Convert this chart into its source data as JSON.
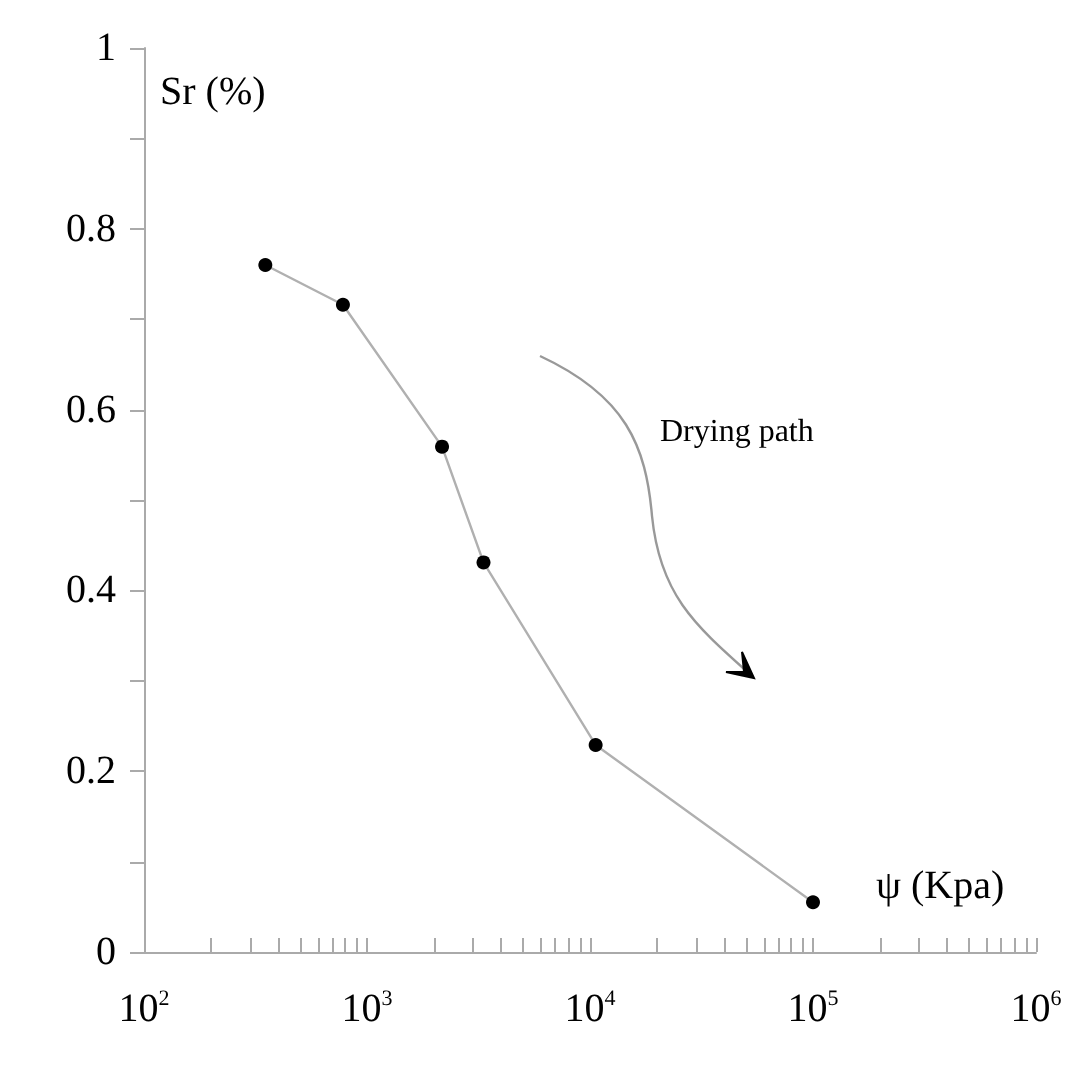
{
  "chart_data": {
    "type": "line",
    "xlabel": "ψ (Kpa)",
    "ylabel": "Sr (%)",
    "annotations": [
      "Drying path"
    ],
    "log": "x",
    "marker": "circle",
    "line_style": "solid",
    "grid": false,
    "xlim": [
      100,
      1000000
    ],
    "ylim": [
      0,
      1
    ],
    "xticks": [
      {
        "value": 100,
        "label": "10$^{2}$"
      },
      {
        "value": 200,
        "label": null
      },
      {
        "value": 300,
        "label": null
      },
      {
        "value": 400,
        "label": null
      },
      {
        "value": 500,
        "label": null
      },
      {
        "value": 600,
        "label": null
      },
      {
        "value": 700,
        "label": null
      },
      {
        "value": 800,
        "label": null
      },
      {
        "value": 900,
        "label": null
      },
      {
        "value": 1000,
        "label": "10$^{3}$"
      },
      {
        "value": 2000,
        "label": null
      },
      {
        "value": 3000,
        "label": null
      },
      {
        "value": 4000,
        "label": null
      },
      {
        "value": 5000,
        "label": null
      },
      {
        "value": 6000,
        "label": null
      },
      {
        "value": 7000,
        "label": null
      },
      {
        "value": 8000,
        "label": null
      },
      {
        "value": 9000,
        "label": null
      },
      {
        "value": 10000,
        "label": "10$^{4}$"
      },
      {
        "value": 20000,
        "label": null
      },
      {
        "value": 30000,
        "label": null
      },
      {
        "value": 40000,
        "label": null
      },
      {
        "value": 50000,
        "label": null
      },
      {
        "value": 60000,
        "label": null
      },
      {
        "value": 70000,
        "label": null
      },
      {
        "value": 80000,
        "label": null
      },
      {
        "value": 90000,
        "label": null
      },
      {
        "value": 100000,
        "label": "10$^{5}$"
      },
      {
        "value": 200000,
        "label": null
      },
      {
        "value": 300000,
        "label": null
      },
      {
        "value": 400000,
        "label": null
      },
      {
        "value": 500000,
        "label": null
      },
      {
        "value": 600000,
        "label": null
      },
      {
        "value": 700000,
        "label": null
      },
      {
        "value": 800000,
        "label": null
      },
      {
        "value": 900000,
        "label": null
      },
      {
        "value": 1000000,
        "label": "10$^{6}$"
      }
    ],
    "yticks": [
      0,
      {
        "value": 0.1,
        "label": null
      },
      0.2,
      {
        "value": 0.3,
        "label": null
      },
      0.4,
      {
        "value": 0.5,
        "label": null
      },
      0.6,
      {
        "value": 0.7,
        "label": null
      },
      0.8,
      {
        "value": 0.9,
        "label": null
      },
      1
    ],
    "series": [
      {
        "color": "#b0b0b0",
        "x": [
          350,
          780,
          2170,
          3330,
          10600,
          100000
        ],
        "values": [
          0.76,
          0.716,
          0.559,
          0.431,
          0.229,
          0.055
        ]
      }
    ]
  }
}
